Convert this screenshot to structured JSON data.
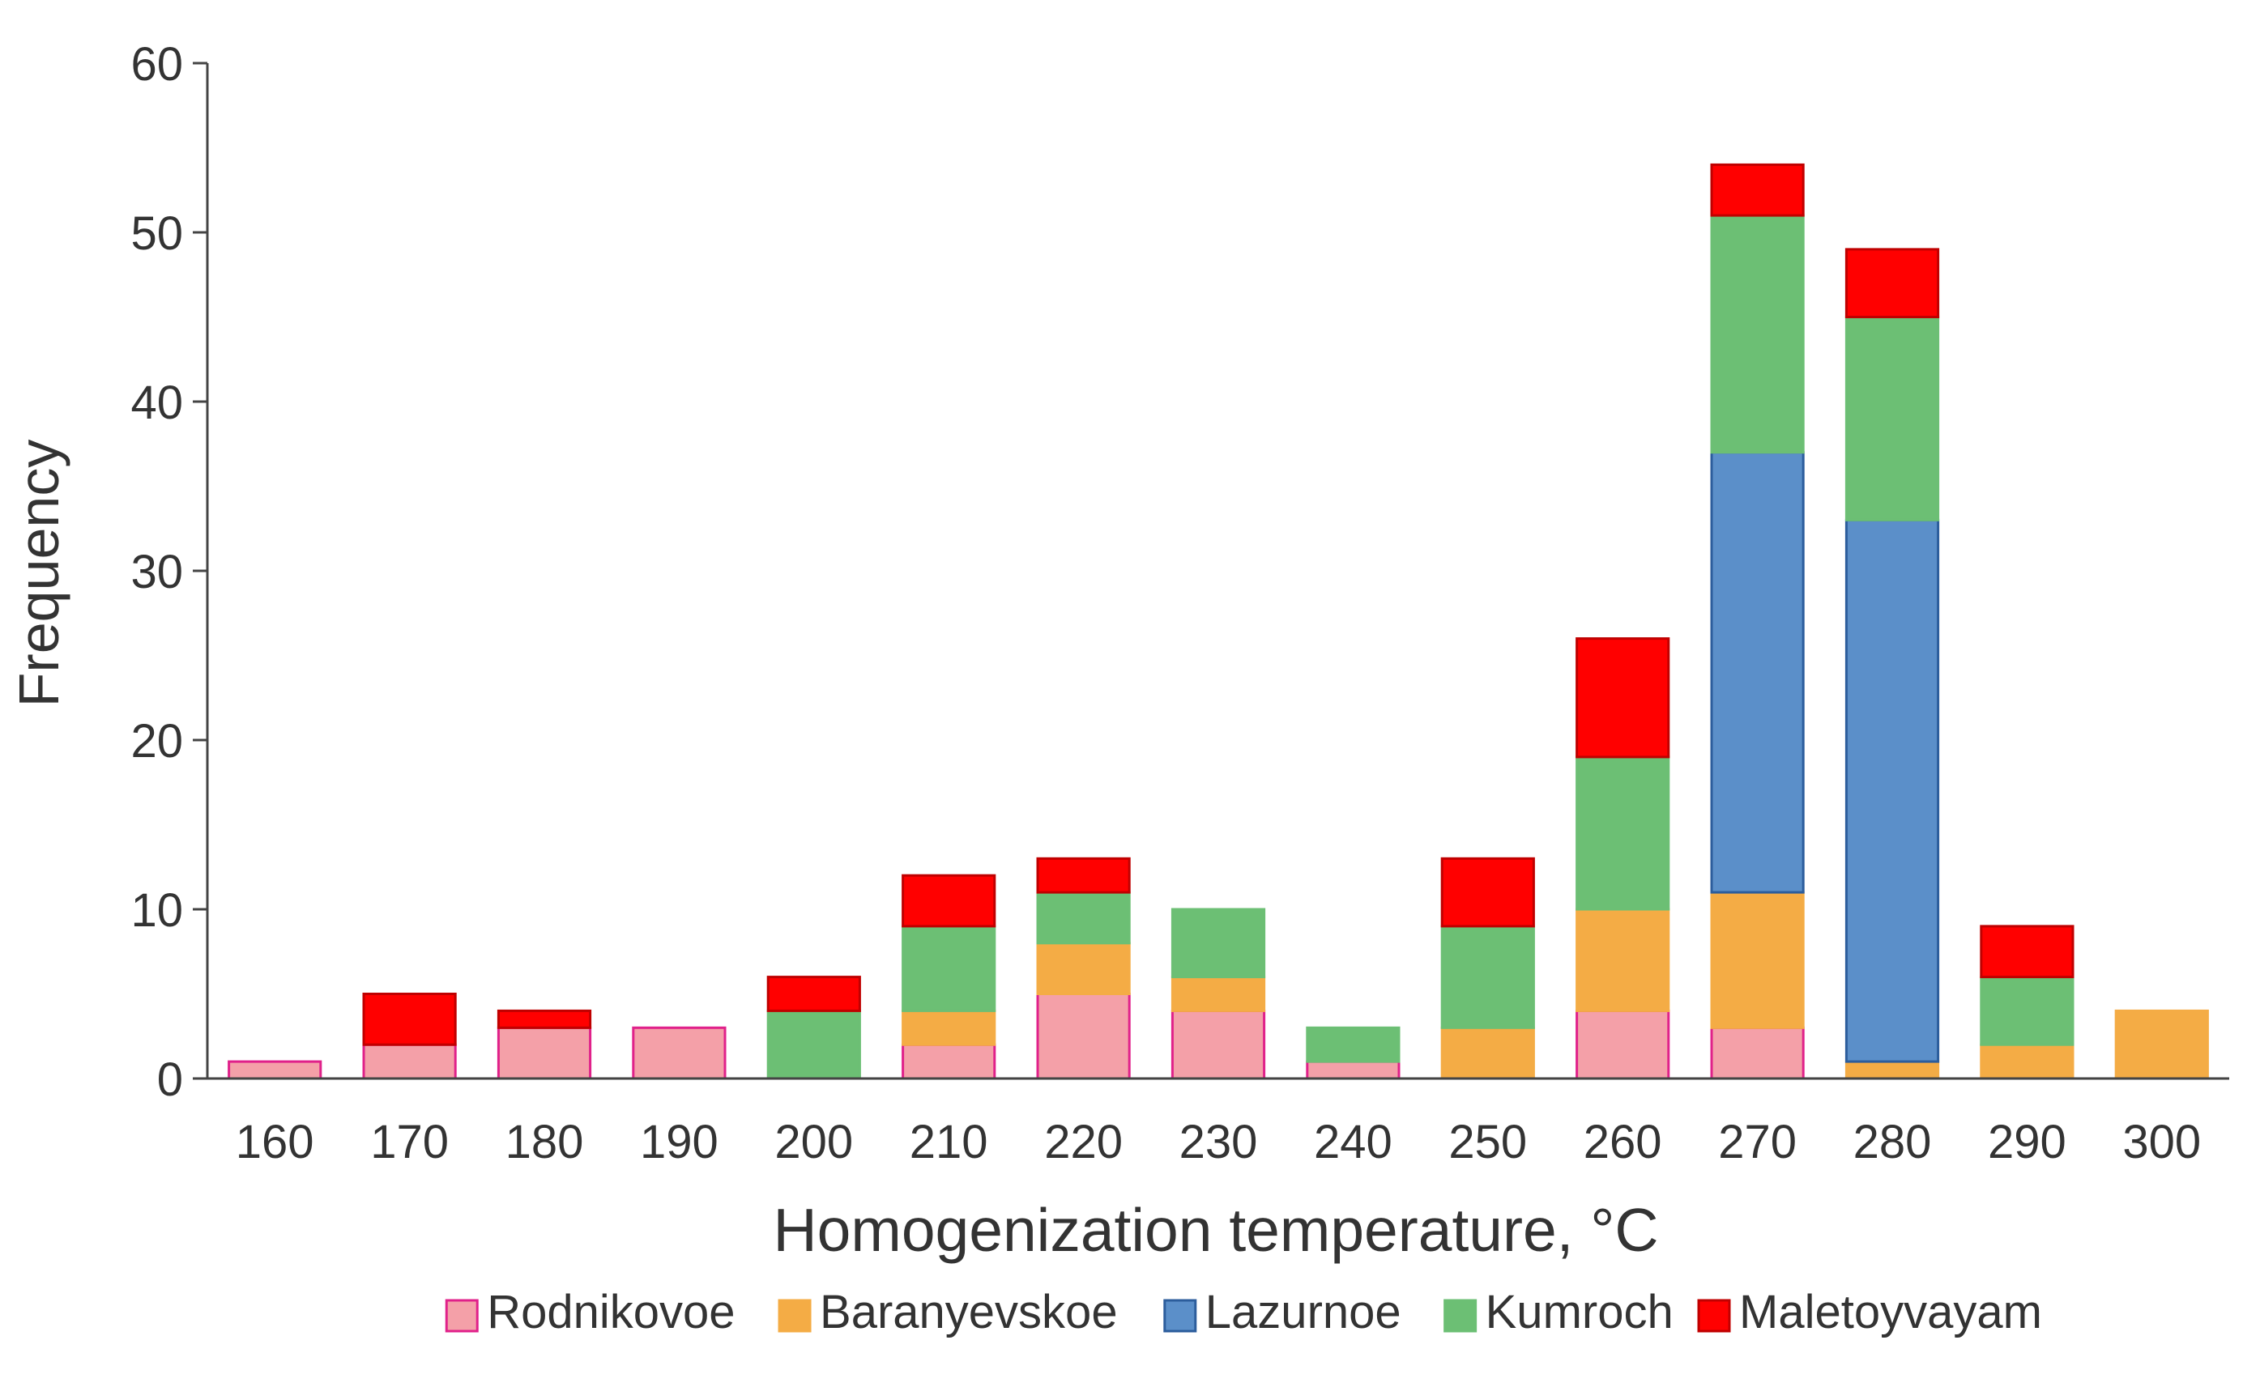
{
  "chart_data": {
    "type": "bar",
    "stacked": true,
    "title": "",
    "xlabel": "Homogenization temperature, °C",
    "ylabel": "Frequency",
    "ylim": [
      0,
      60
    ],
    "yticks": [
      0,
      10,
      20,
      30,
      40,
      50,
      60
    ],
    "grid": false,
    "legend_position": "bottom",
    "categories": [
      "160",
      "170",
      "180",
      "190",
      "200",
      "210",
      "220",
      "230",
      "240",
      "250",
      "260",
      "270",
      "280",
      "290",
      "300"
    ],
    "series": [
      {
        "name": "Rodnikovoe",
        "color": "#f4a0a8",
        "stroke": "#e0218a",
        "values": [
          1,
          2,
          3,
          3,
          0,
          2,
          5,
          4,
          1,
          0,
          4,
          3,
          0,
          0,
          0
        ]
      },
      {
        "name": "Baranyevskoe",
        "color": "#f4ac45",
        "stroke": "#f4ac45",
        "values": [
          0,
          0,
          0,
          0,
          0,
          2,
          3,
          2,
          0,
          3,
          6,
          8,
          1,
          2,
          4
        ]
      },
      {
        "name": "Lazurnoe",
        "color": "#5b8fc9",
        "stroke": "#2c5d9c",
        "values": [
          0,
          0,
          0,
          0,
          0,
          0,
          0,
          0,
          0,
          0,
          0,
          26,
          32,
          0,
          0
        ]
      },
      {
        "name": "Kumroch",
        "color": "#6cbf74",
        "stroke": "#6cbf74",
        "values": [
          0,
          0,
          0,
          0,
          4,
          5,
          3,
          4,
          2,
          6,
          9,
          14,
          12,
          4,
          0
        ]
      },
      {
        "name": "Maletoyvayam",
        "color": "#ff0000",
        "stroke": "#c00000",
        "values": [
          0,
          3,
          1,
          0,
          2,
          3,
          2,
          0,
          0,
          4,
          7,
          3,
          4,
          3,
          0
        ]
      }
    ]
  },
  "colors": {
    "axis": "#444444",
    "text": "#333333"
  }
}
